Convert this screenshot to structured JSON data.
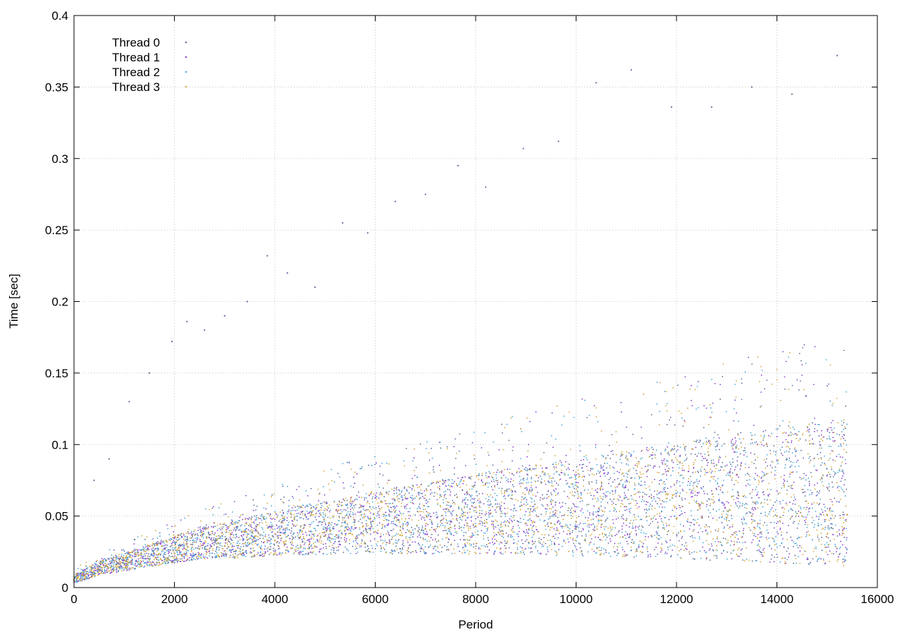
{
  "chart_data": {
    "type": "scatter",
    "title": "",
    "xlabel": "Period",
    "ylabel": "Time [sec]",
    "xlim": [
      0,
      16000
    ],
    "ylim": [
      0,
      0.4
    ],
    "xticks": [
      0,
      2000,
      4000,
      6000,
      8000,
      10000,
      12000,
      14000,
      16000
    ],
    "xtick_labels": [
      "0",
      "2000",
      "4000",
      "6000",
      "8000",
      "10000",
      "12000",
      "14000",
      "16000"
    ],
    "yticks": [
      0,
      0.05,
      0.1,
      0.15,
      0.2,
      0.25,
      0.3,
      0.35,
      0.4
    ],
    "ytick_labels": [
      "0",
      "0.05",
      "0.1",
      "0.15",
      "0.2",
      "0.25",
      "0.3",
      "0.35",
      "0.4"
    ],
    "grid": true,
    "legend_position": "top-left",
    "series": [
      {
        "name": "Thread 0",
        "color": "#5a6e9a",
        "x": [
          0,
          500,
          1000,
          1500,
          2000,
          2500,
          3000,
          3500,
          4000,
          4500,
          5000,
          5500,
          6000,
          6500,
          7000,
          7500,
          8000,
          8500,
          9000,
          9500,
          10000,
          10500,
          11000,
          11500,
          12000,
          12500,
          13000,
          13500,
          14000,
          14500,
          15000,
          15400
        ],
        "y": [
          0.005,
          0.012,
          0.016,
          0.02,
          0.024,
          0.027,
          0.029,
          0.031,
          0.033,
          0.035,
          0.036,
          0.038,
          0.039,
          0.04,
          0.041,
          0.042,
          0.043,
          0.044,
          0.045,
          0.045,
          0.046,
          0.047,
          0.047,
          0.048,
          0.048,
          0.049,
          0.049,
          0.05,
          0.05,
          0.05,
          0.051,
          0.051
        ]
      },
      {
        "name": "Thread 1",
        "color": "#8a3fd1",
        "x": [
          0,
          500,
          1000,
          1500,
          2000,
          2500,
          3000,
          3500,
          4000,
          4500,
          5000,
          5500,
          6000,
          6500,
          7000,
          7500,
          8000,
          8500,
          9000,
          9500,
          10000,
          10500,
          11000,
          11500,
          12000,
          12500,
          13000,
          13500,
          14000,
          14500,
          15000,
          15400
        ],
        "y": [
          0.005,
          0.012,
          0.016,
          0.02,
          0.024,
          0.027,
          0.029,
          0.031,
          0.033,
          0.035,
          0.036,
          0.038,
          0.039,
          0.04,
          0.041,
          0.042,
          0.043,
          0.044,
          0.045,
          0.045,
          0.046,
          0.047,
          0.047,
          0.048,
          0.048,
          0.049,
          0.049,
          0.05,
          0.05,
          0.05,
          0.051,
          0.051
        ]
      },
      {
        "name": "Thread 2",
        "color": "#4aa8d8",
        "x": [
          0,
          500,
          1000,
          1500,
          2000,
          2500,
          3000,
          3500,
          4000,
          4500,
          5000,
          5500,
          6000,
          6500,
          7000,
          7500,
          8000,
          8500,
          9000,
          9500,
          10000,
          10500,
          11000,
          11500,
          12000,
          12500,
          13000,
          13500,
          14000,
          14500,
          15000,
          15400
        ],
        "y": [
          0.005,
          0.012,
          0.016,
          0.02,
          0.024,
          0.027,
          0.029,
          0.031,
          0.033,
          0.035,
          0.036,
          0.038,
          0.039,
          0.04,
          0.041,
          0.042,
          0.043,
          0.044,
          0.045,
          0.045,
          0.046,
          0.047,
          0.047,
          0.048,
          0.048,
          0.049,
          0.049,
          0.05,
          0.05,
          0.05,
          0.051,
          0.051
        ]
      },
      {
        "name": "Thread 3",
        "color": "#d4a838",
        "x": [
          0,
          500,
          1000,
          1500,
          2000,
          2500,
          3000,
          3500,
          4000,
          4500,
          5000,
          5500,
          6000,
          6500,
          7000,
          7500,
          8000,
          8500,
          9000,
          9500,
          10000,
          10500,
          11000,
          11500,
          12000,
          12500,
          13000,
          13500,
          14000,
          14500,
          15000,
          15400
        ],
        "y": [
          0.005,
          0.012,
          0.016,
          0.02,
          0.024,
          0.027,
          0.029,
          0.031,
          0.033,
          0.035,
          0.036,
          0.038,
          0.039,
          0.04,
          0.041,
          0.042,
          0.043,
          0.044,
          0.045,
          0.045,
          0.046,
          0.047,
          0.047,
          0.048,
          0.048,
          0.049,
          0.049,
          0.05,
          0.05,
          0.05,
          0.051,
          0.051
        ]
      }
    ],
    "outliers": {
      "x": [
        400,
        700,
        1100,
        1500,
        1950,
        2250,
        2600,
        3000,
        3450,
        3850,
        4250,
        4800,
        5350,
        5850,
        6400,
        7000,
        7650,
        8200,
        8950,
        9650,
        10400,
        11100,
        11900,
        12700,
        13500,
        14300,
        15200
      ],
      "y": [
        0.075,
        0.09,
        0.13,
        0.15,
        0.172,
        0.186,
        0.18,
        0.19,
        0.2,
        0.232,
        0.22,
        0.21,
        0.255,
        0.248,
        0.27,
        0.275,
        0.295,
        0.28,
        0.307,
        0.312,
        0.353,
        0.362,
        0.336,
        0.336,
        0.35,
        0.345,
        0.372
      ]
    }
  }
}
